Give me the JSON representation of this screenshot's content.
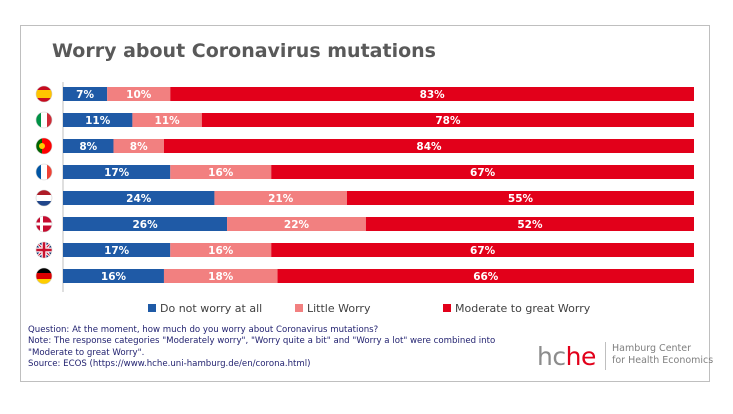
{
  "chart_data": {
    "type": "bar",
    "stacked": true,
    "orientation": "horizontal",
    "title": "Worry about Coronavirus mutations",
    "categories": [
      "es",
      "it",
      "pt",
      "fr",
      "nl",
      "dk",
      "gb",
      "de"
    ],
    "category_icons": [
      "spain-flag-icon",
      "italy-flag-icon",
      "portugal-flag-icon",
      "france-flag-icon",
      "netherlands-flag-icon",
      "denmark-flag-icon",
      "uk-flag-icon",
      "germany-flag-icon"
    ],
    "series": [
      {
        "name": "Do not worry at all",
        "color": "#1f5aa6",
        "values": [
          7,
          11,
          8,
          17,
          24,
          26,
          17,
          16
        ]
      },
      {
        "name": "Little Worry",
        "color": "#f28080",
        "values": [
          10,
          11,
          8,
          16,
          21,
          22,
          16,
          18
        ]
      },
      {
        "name": "Moderate to great Worry",
        "color": "#e2001a",
        "values": [
          83,
          78,
          84,
          67,
          55,
          52,
          67,
          66
        ]
      }
    ],
    "xlim": [
      0,
      100
    ],
    "value_suffix": "%",
    "legend_position": "bottom",
    "grid": false
  },
  "notes": {
    "question": "Question: At the moment, how much do you worry about Coronavirus mutations?",
    "note": "Note: The response categories \"Moderately worry\", \"Worry quite a bit\" and \"Worry a lot\" were combined into \"Moderate to great Worry\".",
    "source": "Source: ECOS (https://www.hche.uni-hamburg.de/en/corona.html)"
  },
  "logo": {
    "hc": "hc",
    "he": "he",
    "line1": "Hamburg Center",
    "line2": "for Health Economics"
  }
}
